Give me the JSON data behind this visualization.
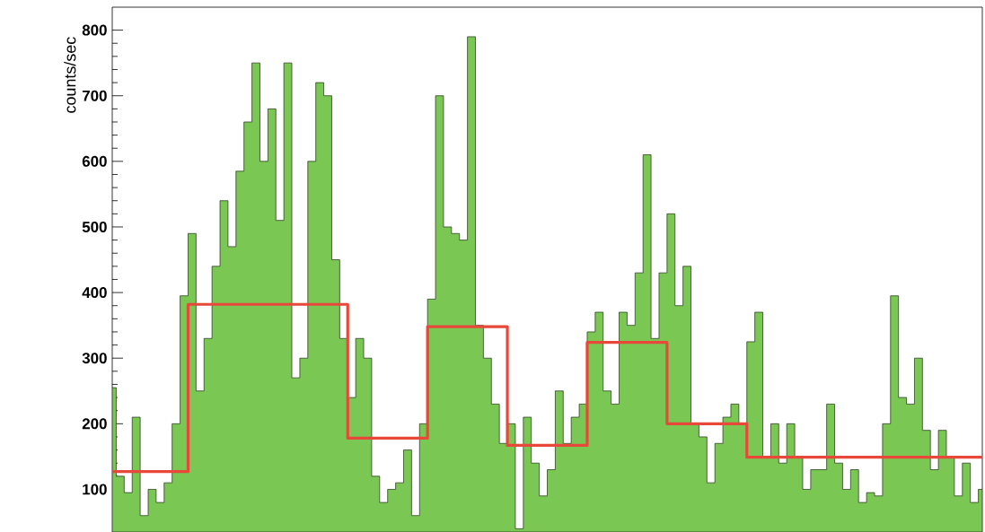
{
  "chart_data": {
    "type": "step",
    "ylabel": "counts/sec",
    "ylim": [
      35,
      835
    ],
    "yticks": [
      100,
      200,
      300,
      400,
      500,
      600,
      700,
      800
    ],
    "categories": [
      null,
      null,
      null,
      null,
      null,
      null,
      null,
      null,
      null,
      null,
      null,
      null,
      null,
      null,
      null,
      null,
      null,
      null,
      null,
      null,
      null,
      null,
      null,
      null,
      null,
      null,
      null,
      null,
      null,
      null,
      null,
      null,
      null,
      null,
      null,
      null,
      null,
      null,
      null,
      null,
      null,
      null,
      null,
      null,
      null,
      null,
      null,
      null,
      null,
      null,
      null,
      null,
      null,
      null,
      null,
      null,
      null,
      null,
      null,
      null,
      null,
      null,
      null,
      null,
      null,
      null,
      null,
      null,
      null,
      null,
      null,
      null,
      null,
      null,
      null,
      null,
      null,
      null,
      null,
      null,
      null,
      null,
      null,
      null,
      null,
      null,
      null,
      null,
      null,
      null,
      null,
      null,
      null,
      null,
      null,
      null,
      null,
      null,
      null,
      null,
      null,
      null,
      null,
      null,
      null,
      null,
      null,
      null,
      null,
      null
    ],
    "series": [
      {
        "type": "area",
        "color": "#7ac754",
        "values": [
          255,
          120,
          95,
          210,
          60,
          100,
          80,
          110,
          200,
          395,
          490,
          250,
          330,
          440,
          540,
          470,
          585,
          660,
          750,
          600,
          680,
          510,
          750,
          270,
          300,
          600,
          720,
          700,
          450,
          330,
          240,
          330,
          300,
          120,
          80,
          100,
          110,
          160,
          60,
          200,
          390,
          700,
          500,
          490,
          480,
          790,
          350,
          300,
          230,
          170,
          200,
          40,
          210,
          140,
          90,
          130,
          250,
          170,
          210,
          230,
          340,
          370,
          250,
          230,
          370,
          350,
          430,
          610,
          330,
          430,
          520,
          380,
          440,
          200,
          180,
          110,
          170,
          210,
          230,
          200,
          325,
          370,
          150,
          200,
          140,
          200,
          150,
          100,
          130,
          130,
          230,
          140,
          100,
          130,
          80,
          95,
          90,
          200,
          395,
          240,
          230,
          300,
          190,
          130,
          190,
          150,
          90,
          140,
          80,
          100
        ]
      },
      {
        "color": "#e8483a",
        "values": [
          127,
          127,
          127,
          127,
          127,
          127,
          127,
          127,
          127,
          127,
          382,
          382,
          382,
          382,
          382,
          382,
          382,
          382,
          382,
          382,
          382,
          382,
          382,
          382,
          382,
          382,
          382,
          382,
          382,
          382,
          178,
          178,
          178,
          178,
          178,
          178,
          178,
          178,
          178,
          178,
          348,
          348,
          348,
          348,
          348,
          348,
          348,
          348,
          348,
          348,
          167,
          167,
          167,
          167,
          167,
          167,
          167,
          167,
          167,
          167,
          324,
          324,
          324,
          324,
          324,
          324,
          324,
          324,
          324,
          324,
          200,
          200,
          200,
          200,
          200,
          200,
          200,
          200,
          200,
          200,
          149,
          149,
          149,
          149,
          149,
          149,
          149,
          149,
          149,
          149,
          149,
          149,
          149,
          149,
          149,
          149,
          149,
          149,
          149,
          149,
          149,
          149,
          149,
          149,
          149,
          149,
          149,
          149,
          149,
          149
        ]
      }
    ]
  }
}
